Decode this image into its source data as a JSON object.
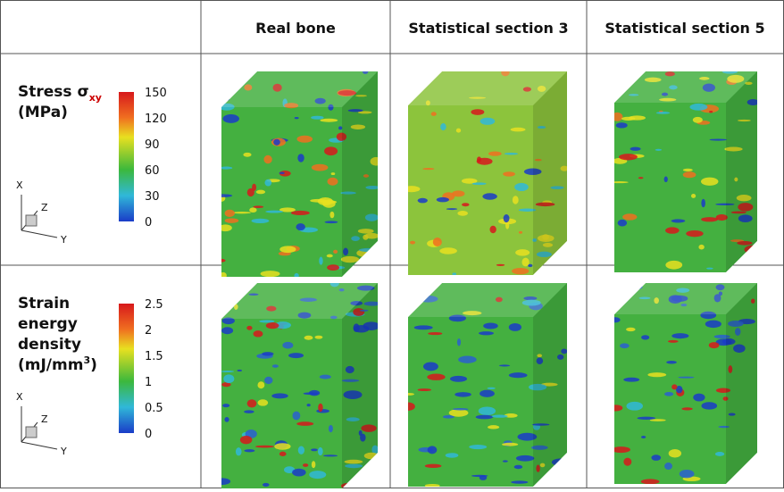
{
  "header": {
    "columns": [
      "",
      "Real bone",
      "Statistical section 3",
      "Statistical section 5"
    ]
  },
  "rows": [
    {
      "label": {
        "lines": [
          "Stress σ"
        ],
        "subscript": "xy",
        "unit": "(MPa)",
        "unit_sup": "",
        "unit_end": ""
      },
      "colorbar_ticks": [
        150,
        120,
        90,
        60,
        30,
        0
      ],
      "axes": {
        "x": "X",
        "z": "Z",
        "y": "Y"
      }
    },
    {
      "label": {
        "lines": [
          "Strain",
          "energy",
          "density"
        ],
        "subscript": "",
        "unit": "(mJ/mm",
        "unit_sup": "3",
        "unit_end": ")"
      },
      "colorbar_ticks": [
        2.5,
        2,
        1.5,
        1,
        0.5,
        0
      ],
      "axes": {
        "x": "X",
        "z": "Z",
        "y": "Y"
      }
    }
  ]
}
